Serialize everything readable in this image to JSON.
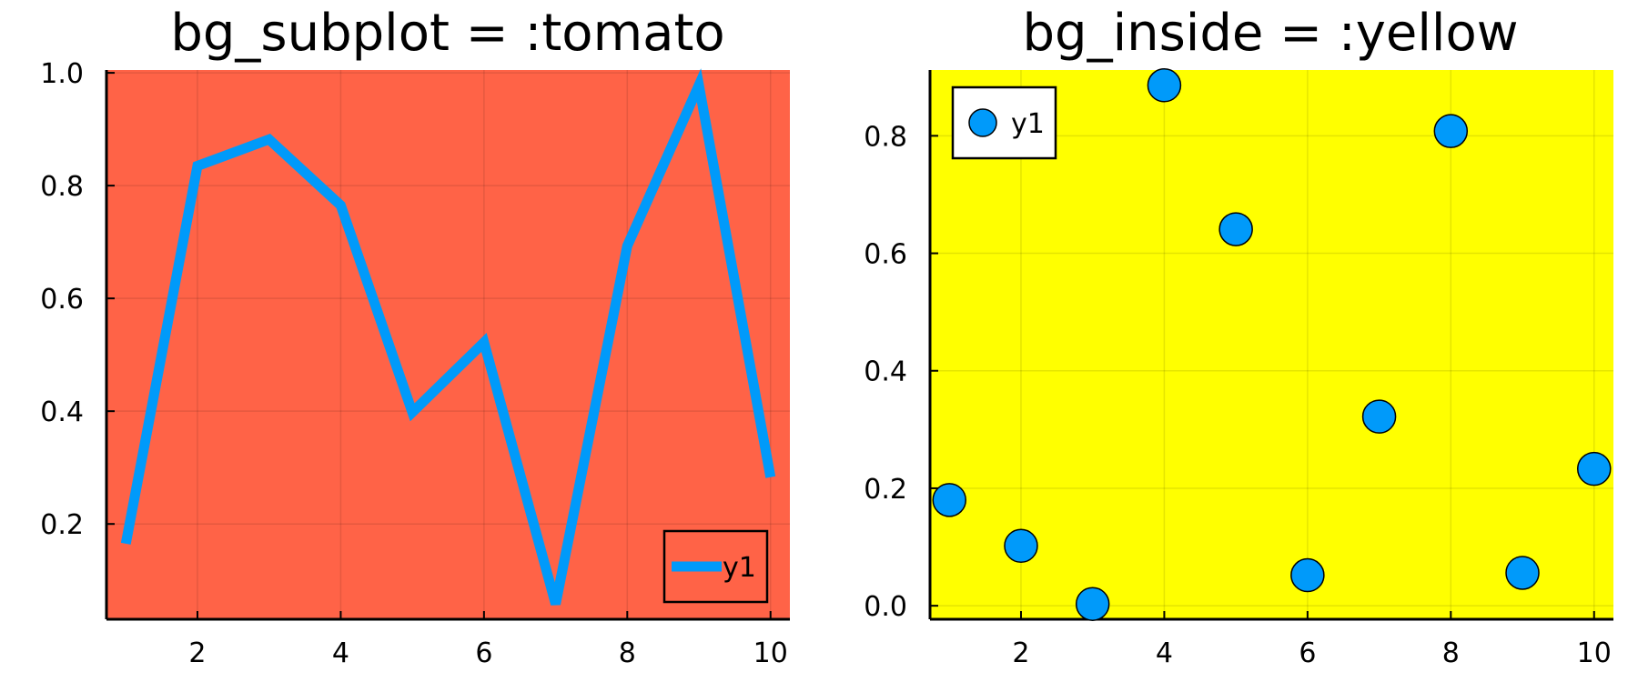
{
  "chart_data": [
    {
      "type": "line",
      "title": "bg_subplot = :tomato",
      "xlabel": "",
      "ylabel": "",
      "x": [
        1,
        2,
        3,
        4,
        5,
        6,
        7,
        8,
        9,
        10
      ],
      "series": [
        {
          "name": "y1",
          "values": [
            0.165,
            0.835,
            0.882,
            0.765,
            0.398,
            0.522,
            0.058,
            0.693,
            0.978,
            0.283
          ],
          "color": "#009AFA"
        }
      ],
      "xlim": [
        0.73,
        10.27
      ],
      "ylim": [
        0.031,
        1.005
      ],
      "xticks": [
        2,
        4,
        6,
        8,
        10
      ],
      "xtick_labels": [
        "2",
        "4",
        "6",
        "8",
        "10"
      ],
      "yticks": [
        0.2,
        0.4,
        0.6,
        0.8,
        1.0
      ],
      "ytick_labels": [
        "0.2",
        "0.4",
        "0.6",
        "0.8",
        "1.0"
      ],
      "grid": true,
      "legend": "bottom-right",
      "background": "#FF6347"
    },
    {
      "type": "scatter",
      "title": "bg_inside = :yellow",
      "xlabel": "",
      "ylabel": "",
      "x": [
        1,
        2,
        3,
        4,
        5,
        6,
        7,
        8,
        9,
        10
      ],
      "series": [
        {
          "name": "y1",
          "values": [
            0.18,
            0.102,
            0.003,
            0.886,
            0.641,
            0.052,
            0.322,
            0.808,
            0.056,
            0.233
          ],
          "color": "#009AFA"
        }
      ],
      "xlim": [
        0.73,
        10.27
      ],
      "ylim": [
        -0.023,
        0.912
      ],
      "xticks": [
        2,
        4,
        6,
        8,
        10
      ],
      "xtick_labels": [
        "2",
        "4",
        "6",
        "8",
        "10"
      ],
      "yticks": [
        0.0,
        0.2,
        0.4,
        0.6,
        0.8
      ],
      "ytick_labels": [
        "0.0",
        "0.2",
        "0.4",
        "0.6",
        "0.8"
      ],
      "grid": true,
      "legend": "top-left",
      "background": "#FFFF00"
    }
  ]
}
